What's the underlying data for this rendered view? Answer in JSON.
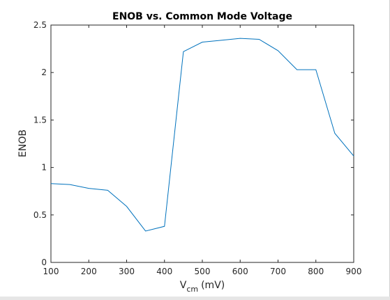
{
  "chart_data": {
    "type": "line",
    "title": "ENOB vs. Common Mode Voltage",
    "xlabel": {
      "main": "V",
      "subscript": "cm",
      "unit": "(mV)"
    },
    "ylabel": "ENOB",
    "xlim": [
      100,
      900
    ],
    "ylim": [
      0,
      2.5
    ],
    "xticks": [
      100,
      200,
      300,
      400,
      500,
      600,
      700,
      800,
      900
    ],
    "yticks": [
      0,
      0.5,
      1,
      1.5,
      2,
      2.5
    ],
    "grid": false,
    "line_color": "#0072bd",
    "series": [
      {
        "x": [
          100,
          150,
          200,
          250,
          300,
          350,
          400,
          450,
          500,
          550,
          600,
          650,
          700,
          750,
          800,
          850,
          900
        ],
        "y": [
          0.83,
          0.82,
          0.78,
          0.76,
          0.59,
          0.33,
          0.38,
          2.22,
          2.32,
          2.34,
          2.36,
          2.35,
          2.23,
          2.03,
          2.03,
          1.36,
          1.12
        ]
      }
    ]
  }
}
